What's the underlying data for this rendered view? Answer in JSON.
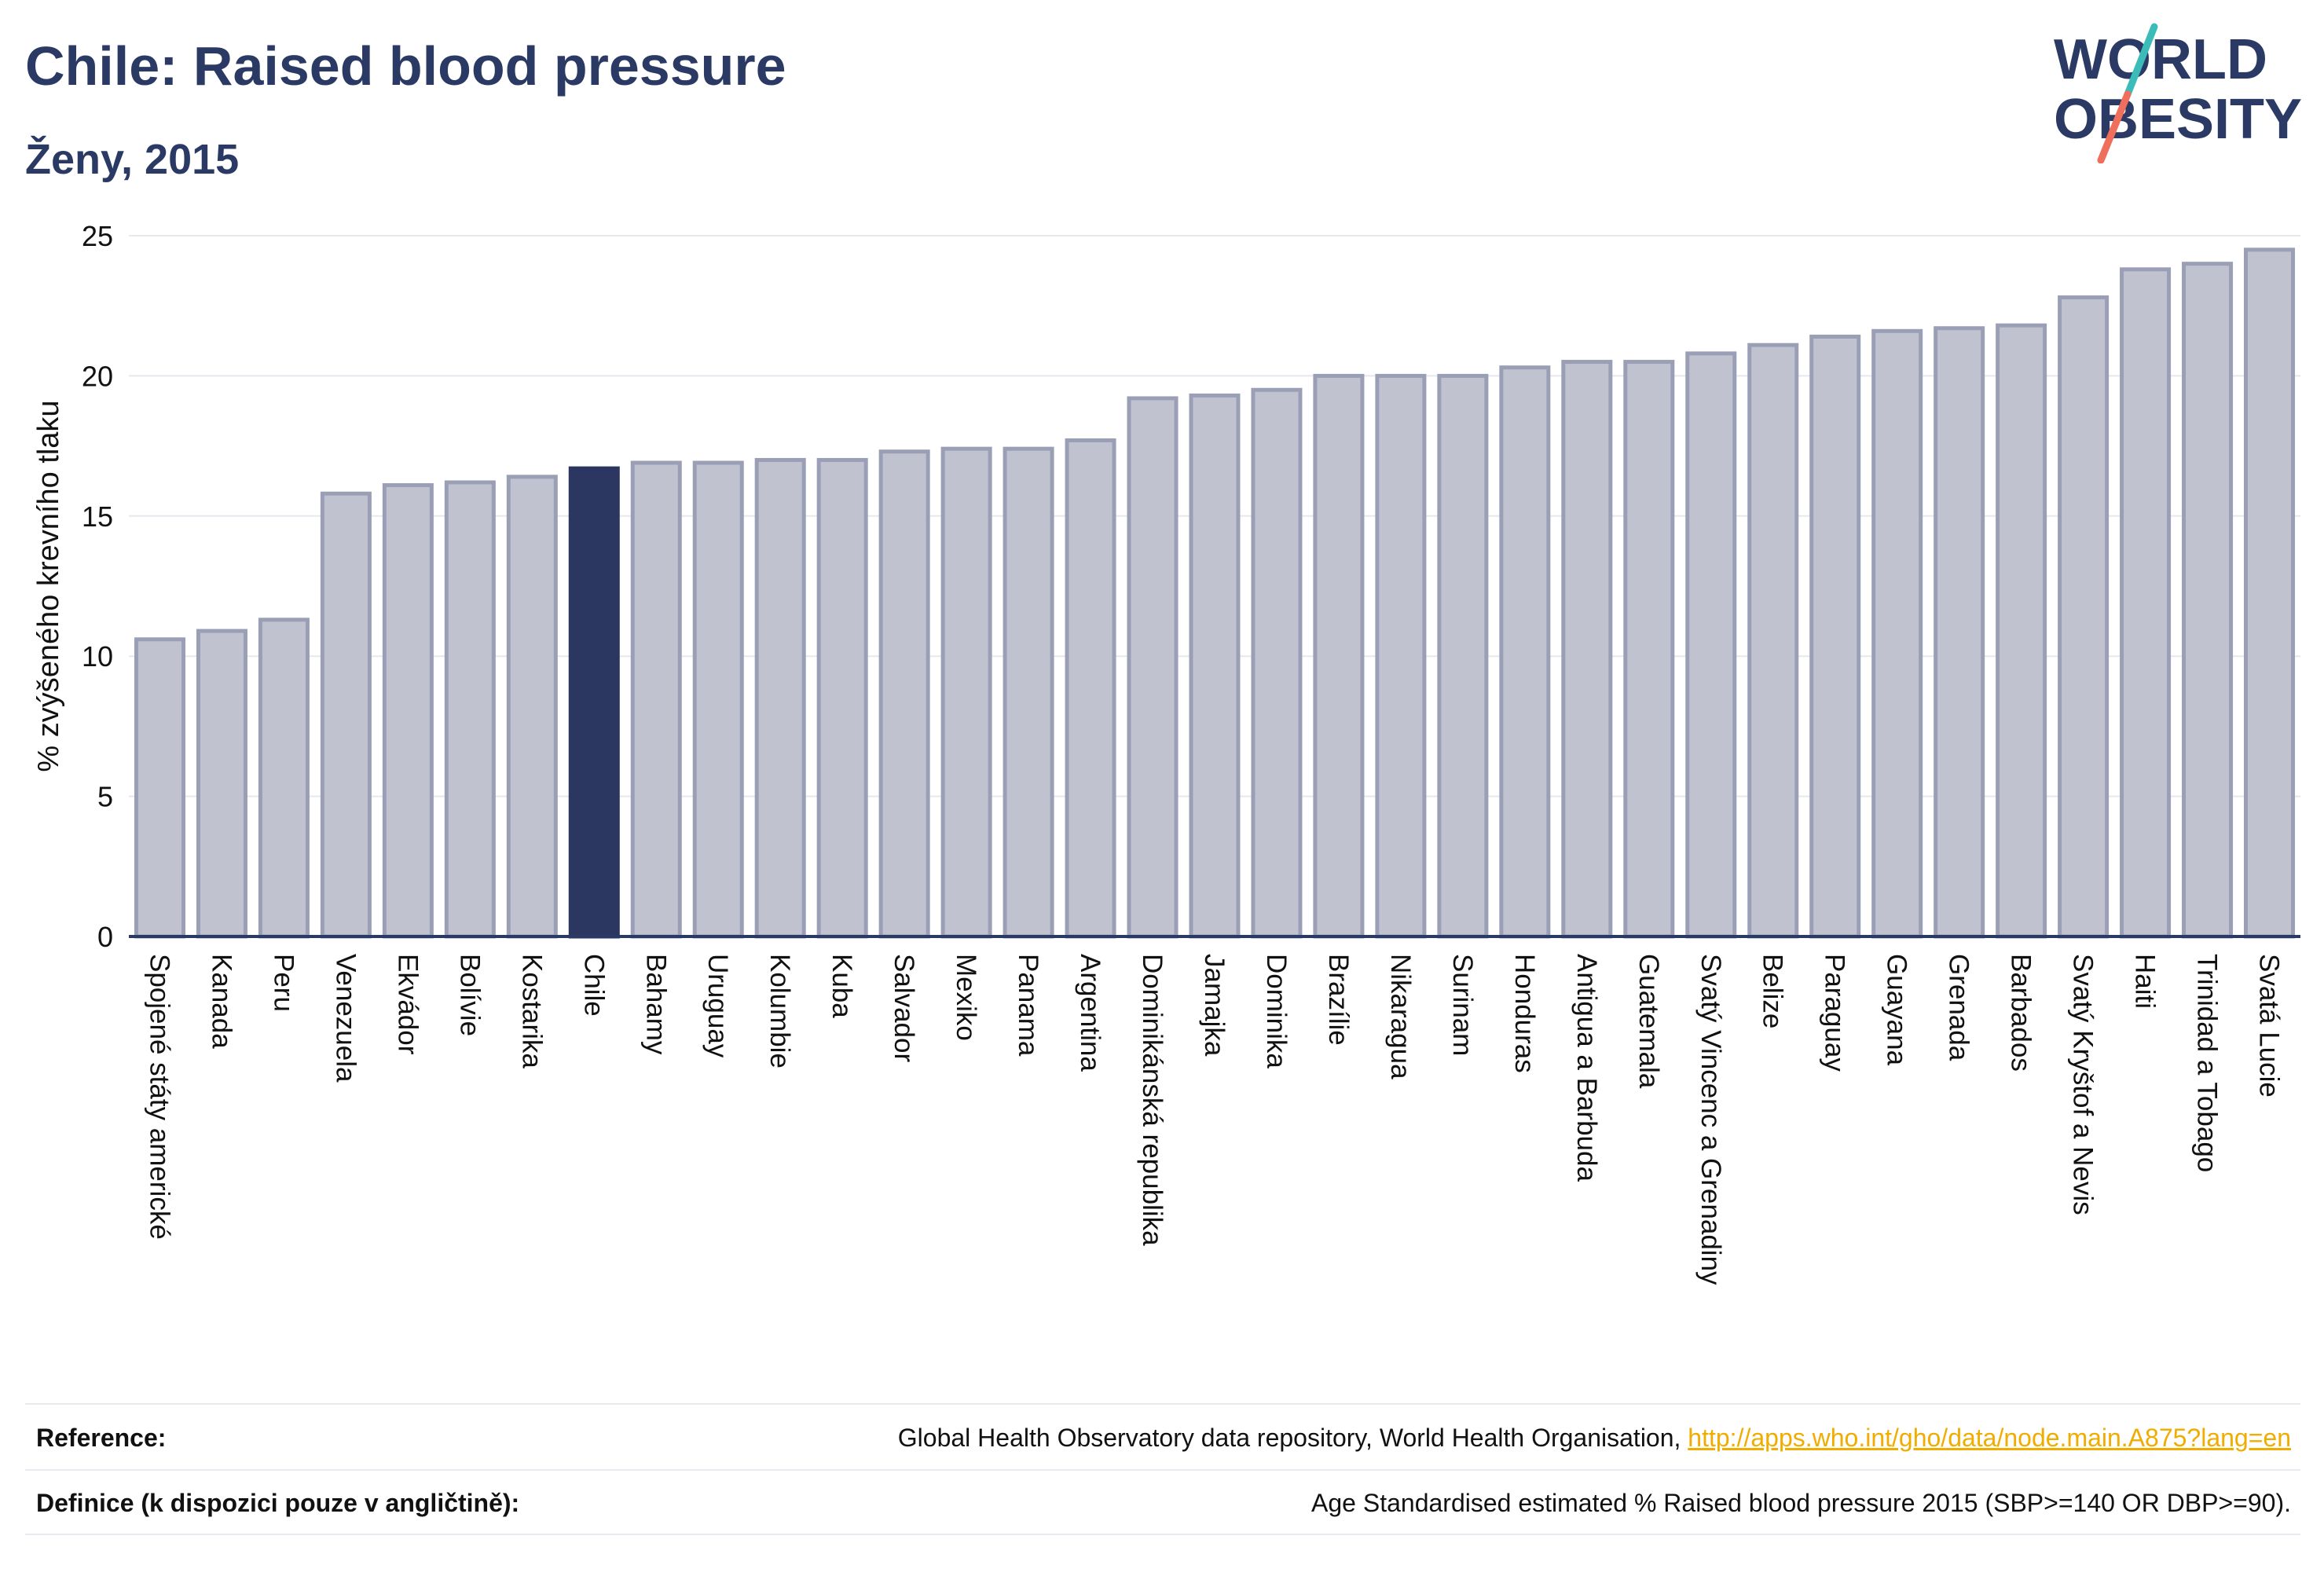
{
  "header": {
    "title": "Chile: Raised blood pressure",
    "subtitle": "Ženy, 2015"
  },
  "logo": {
    "line1": "WORLD",
    "line2": "OBESITY",
    "colors": {
      "text": "#2b3a64",
      "slash_teal": "#3bbcb8",
      "slash_coral": "#ef6f5c"
    }
  },
  "chart_data": {
    "type": "bar",
    "ylabel": "% zvýšeného krevního tlaku",
    "ylim": [
      0,
      25
    ],
    "yticks": [
      0,
      5,
      10,
      15,
      20,
      25
    ],
    "grid": true,
    "highlight": "Chile",
    "colors": {
      "bar": "#c0c3cf",
      "bar_stroke": "#9a9fb5",
      "highlight": "#2b3761"
    },
    "categories": [
      "Spojené státy americké",
      "Kanada",
      "Peru",
      "Venezuela",
      "Ekvádor",
      "Bolívie",
      "Kostarika",
      "Chile",
      "Bahamy",
      "Uruguay",
      "Kolumbie",
      "Kuba",
      "Salvador",
      "Mexiko",
      "Panama",
      "Argentina",
      "Dominikánská republika",
      "Jamajka",
      "Dominika",
      "Brazílie",
      "Nikaragua",
      "Surinam",
      "Honduras",
      "Antigua a Barbuda",
      "Guatemala",
      "Svatý Vincenc a Grenadiny",
      "Belize",
      "Paraguay",
      "Guayana",
      "Grenada",
      "Barbados",
      "Svatý Kryštof a Nevis",
      "Haiti",
      "Trinidad a Tobago",
      "Svatá Lucie"
    ],
    "values": [
      10.6,
      10.9,
      11.3,
      15.8,
      16.1,
      16.2,
      16.4,
      16.7,
      16.9,
      16.9,
      17.0,
      17.0,
      17.3,
      17.4,
      17.4,
      17.7,
      19.2,
      19.3,
      19.5,
      20.0,
      20.0,
      20.0,
      20.3,
      20.5,
      20.5,
      20.8,
      21.1,
      21.4,
      21.6,
      21.7,
      21.8,
      22.8,
      23.8,
      24.0,
      24.5
    ]
  },
  "footer": {
    "reference_label": "Reference:",
    "reference_text": "Global Health Observatory data repository, World Health Organisation, ",
    "reference_link": "http://apps.who.int/gho/data/node.main.A875?lang=en",
    "definition_label": "Definice (k dispozici pouze v angličtině):",
    "definition_text": "Age Standardised estimated % Raised blood pressure 2015 (SBP>=140 OR DBP>=90)."
  }
}
